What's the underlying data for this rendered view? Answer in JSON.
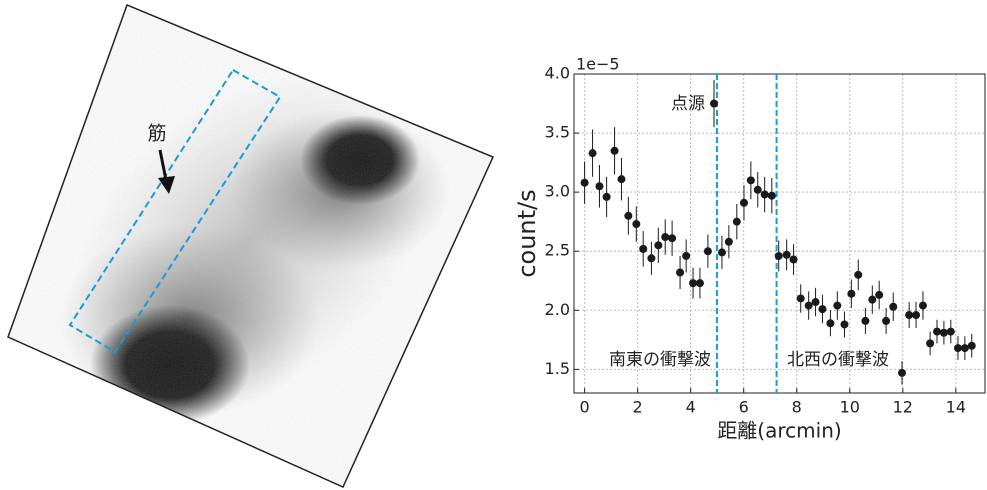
{
  "image": {
    "label": "筋"
  },
  "chart_data": {
    "type": "errorbar",
    "x_label": "距離(arcmin)",
    "y_label": "count/s",
    "y_offset_text": "1e−5",
    "xlim": [
      -0.4,
      15.1
    ],
    "ylim": [
      1.3,
      4.0
    ],
    "xticks": [
      0,
      2,
      4,
      6,
      8,
      10,
      12,
      14
    ],
    "yticks": [
      1.5,
      {
        "value": 2,
        "label": "2.0"
      },
      2.5,
      {
        "value": 3,
        "label": "3.0"
      },
      3.5,
      {
        "value": 4,
        "label": "4.0"
      }
    ],
    "grid": true,
    "series": [
      {
        "color": "#1a1a1a",
        "x": [
          0.0,
          0.3,
          0.56,
          0.83,
          1.13,
          1.39,
          1.65,
          1.95,
          2.21,
          2.52,
          2.78,
          3.04,
          3.3,
          3.6,
          3.83,
          4.09,
          4.35,
          4.65,
          4.88,
          5.18,
          5.44,
          5.74,
          6.01,
          6.27,
          6.53,
          6.79,
          7.06,
          7.32,
          7.62,
          7.88,
          8.15,
          8.45,
          8.71,
          8.97,
          9.27,
          9.53,
          9.8,
          10.06,
          10.32,
          10.59,
          10.85,
          11.11,
          11.37,
          11.64,
          11.97,
          12.24,
          12.5,
          12.76,
          13.03,
          13.29,
          13.55,
          13.81,
          14.08,
          14.34,
          14.6
        ],
        "values": [
          3.08,
          3.33,
          3.05,
          2.96,
          3.35,
          3.11,
          2.8,
          2.73,
          2.52,
          2.44,
          2.55,
          2.62,
          2.61,
          2.32,
          2.46,
          2.23,
          2.23,
          2.5,
          3.75,
          2.49,
          2.58,
          2.75,
          2.91,
          3.1,
          3.02,
          2.98,
          2.97,
          2.46,
          2.47,
          2.43,
          2.1,
          2.04,
          2.07,
          2.01,
          1.89,
          2.04,
          1.88,
          2.14,
          2.3,
          1.91,
          2.09,
          2.13,
          1.91,
          2.03,
          1.47,
          1.96,
          1.96,
          2.04,
          1.72,
          1.82,
          1.81,
          1.82,
          1.68,
          1.68,
          1.7
        ],
        "errors": [
          0.18,
          0.2,
          0.18,
          0.17,
          0.2,
          0.18,
          0.16,
          0.15,
          0.15,
          0.14,
          0.15,
          0.15,
          0.15,
          0.14,
          0.14,
          0.13,
          0.13,
          0.14,
          0.2,
          0.14,
          0.14,
          0.15,
          0.15,
          0.16,
          0.15,
          0.15,
          0.15,
          0.13,
          0.13,
          0.13,
          0.12,
          0.12,
          0.12,
          0.12,
          0.11,
          0.12,
          0.11,
          0.12,
          0.13,
          0.11,
          0.12,
          0.12,
          0.11,
          0.12,
          0.1,
          0.11,
          0.11,
          0.12,
          0.1,
          0.1,
          0.1,
          0.1,
          0.1,
          0.1,
          0.1
        ]
      }
    ],
    "vlines": [
      {
        "value": 4.99,
        "color": "#1a9ad6"
      },
      {
        "value": 7.24,
        "color": "#1a9ad6"
      }
    ],
    "annotations": [
      "点源",
      "南東の衝撃波",
      "北西の衝撃波"
    ]
  }
}
